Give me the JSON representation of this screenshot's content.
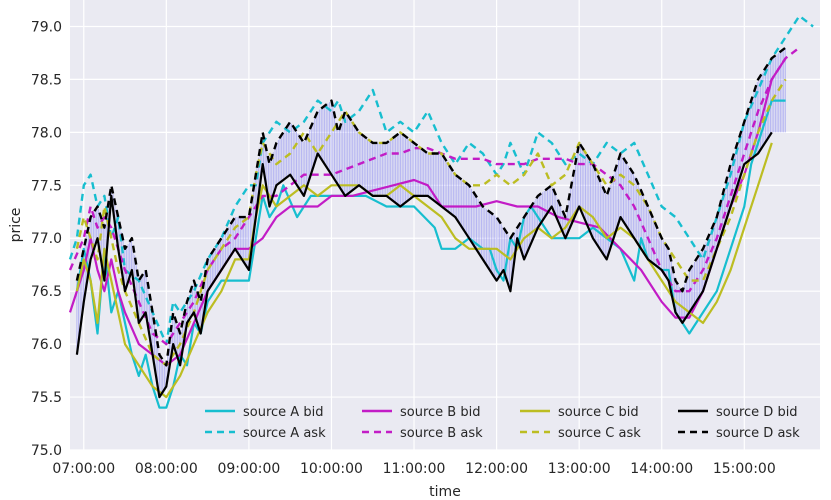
{
  "chart_data": {
    "type": "line",
    "title": "",
    "xlabel": "time",
    "ylabel": "price",
    "xlim": [
      "06:50:00",
      "15:55:00"
    ],
    "ylim": [
      75.0,
      79.25
    ],
    "grid": true,
    "background": "#EAEAF2",
    "x_ticks": [
      "07:00:00",
      "08:00:00",
      "09:00:00",
      "10:00:00",
      "11:00:00",
      "12:00:00",
      "13:00:00",
      "14:00:00",
      "15:00:00"
    ],
    "y_ticks": [
      "75.0",
      "75.5",
      "76.0",
      "76.5",
      "77.0",
      "77.5",
      "78.0",
      "78.5",
      "79.0"
    ],
    "legend": {
      "placement": "lower-center",
      "columns": 4
    },
    "colors": {
      "A": "#17BECF",
      "B": "#C21CC6",
      "C": "#BCBD22",
      "D": "#000000",
      "band": "#8B8BF0"
    },
    "series": [
      {
        "name": "source A bid",
        "source": "A",
        "kind": "bid",
        "style": "solid",
        "x": [
          "06:55",
          "07:00",
          "07:05",
          "07:10",
          "07:15",
          "07:20",
          "07:25",
          "07:30",
          "07:35",
          "07:40",
          "07:45",
          "07:50",
          "07:55",
          "08:00",
          "08:05",
          "08:10",
          "08:15",
          "08:20",
          "08:25",
          "08:30",
          "08:40",
          "08:50",
          "09:00",
          "09:05",
          "09:10",
          "09:15",
          "09:20",
          "09:25",
          "09:35",
          "09:45",
          "10:00",
          "10:15",
          "10:25",
          "10:40",
          "11:00",
          "11:15",
          "11:20",
          "11:30",
          "11:40",
          "11:50",
          "11:55",
          "12:00",
          "12:05",
          "12:10",
          "12:15",
          "12:20",
          "12:25",
          "12:40",
          "12:50",
          "13:00",
          "13:10",
          "13:20",
          "13:30",
          "13:40",
          "13:45",
          "13:50",
          "14:00",
          "14:05",
          "14:10",
          "14:15",
          "14:20",
          "14:30",
          "14:40",
          "14:50",
          "15:00",
          "15:05",
          "15:10",
          "15:20",
          "15:30"
        ],
        "values": [
          76.5,
          76.9,
          76.6,
          76.1,
          76.9,
          76.3,
          76.5,
          76.2,
          75.9,
          75.7,
          75.9,
          75.6,
          75.4,
          75.4,
          75.6,
          75.9,
          75.8,
          76.2,
          76.1,
          76.4,
          76.6,
          76.6,
          76.6,
          77.0,
          77.4,
          77.2,
          77.3,
          77.5,
          77.2,
          77.4,
          77.4,
          77.4,
          77.4,
          77.3,
          77.3,
          77.1,
          76.9,
          76.9,
          77.0,
          76.9,
          76.9,
          76.7,
          76.6,
          77.0,
          76.9,
          77.2,
          77.3,
          77.0,
          77.0,
          77.0,
          77.1,
          77.0,
          76.9,
          76.6,
          77.0,
          76.8,
          76.7,
          76.7,
          76.3,
          76.2,
          76.1,
          76.3,
          76.5,
          76.9,
          77.3,
          77.7,
          77.9,
          78.3,
          78.3
        ]
      },
      {
        "name": "source A ask",
        "source": "A",
        "kind": "ask",
        "style": "dashed",
        "x": [
          "06:50",
          "06:55",
          "07:00",
          "07:05",
          "07:10",
          "07:15",
          "07:20",
          "07:25",
          "07:30",
          "07:40",
          "07:50",
          "08:00",
          "08:05",
          "08:10",
          "08:20",
          "08:30",
          "08:40",
          "08:50",
          "09:00",
          "09:05",
          "09:10",
          "09:20",
          "09:30",
          "09:40",
          "09:50",
          "10:00",
          "10:05",
          "10:10",
          "10:20",
          "10:30",
          "10:40",
          "10:50",
          "11:00",
          "11:10",
          "11:20",
          "11:30",
          "11:40",
          "11:50",
          "12:00",
          "12:05",
          "12:10",
          "12:20",
          "12:30",
          "12:40",
          "12:50",
          "13:00",
          "13:10",
          "13:20",
          "13:30",
          "13:40",
          "13:50",
          "14:00",
          "14:10",
          "14:20",
          "14:30",
          "14:40",
          "14:50",
          "15:00",
          "15:10",
          "15:20",
          "15:30",
          "15:40",
          "15:50"
        ],
        "values": [
          76.8,
          77.0,
          77.5,
          77.6,
          77.3,
          77.4,
          77.0,
          77.2,
          76.7,
          76.6,
          76.3,
          76.0,
          76.4,
          76.3,
          76.5,
          76.8,
          77.0,
          77.3,
          77.5,
          77.5,
          77.9,
          78.1,
          78.0,
          78.1,
          78.3,
          78.2,
          78.3,
          78.1,
          78.2,
          78.4,
          78.0,
          78.1,
          78.0,
          78.2,
          77.9,
          77.7,
          77.9,
          77.8,
          77.6,
          77.7,
          77.9,
          77.6,
          78.0,
          77.9,
          77.7,
          77.8,
          77.7,
          77.9,
          77.8,
          77.9,
          77.6,
          77.3,
          77.2,
          77.0,
          76.8,
          77.2,
          77.6,
          78.1,
          78.4,
          78.7,
          78.9,
          79.1,
          79.0
        ]
      },
      {
        "name": "source B bid",
        "source": "B",
        "kind": "bid",
        "style": "solid",
        "x": [
          "06:50",
          "07:00",
          "07:05",
          "07:10",
          "07:15",
          "07:20",
          "07:25",
          "07:30",
          "07:40",
          "07:50",
          "08:00",
          "08:10",
          "08:20",
          "08:30",
          "08:40",
          "08:50",
          "09:00",
          "09:10",
          "09:20",
          "09:30",
          "09:40",
          "09:50",
          "10:00",
          "10:15",
          "10:30",
          "10:45",
          "11:00",
          "11:10",
          "11:20",
          "11:30",
          "11:45",
          "12:00",
          "12:15",
          "12:30",
          "12:45",
          "13:00",
          "13:15",
          "13:30",
          "13:45",
          "14:00",
          "14:10",
          "14:20",
          "14:30",
          "14:40",
          "14:50",
          "15:00",
          "15:10",
          "15:20",
          "15:30"
        ],
        "values": [
          76.3,
          76.7,
          77.0,
          76.7,
          76.5,
          76.8,
          76.5,
          76.3,
          76.0,
          75.9,
          75.8,
          75.9,
          76.2,
          76.5,
          76.7,
          76.9,
          76.9,
          77.0,
          77.2,
          77.3,
          77.3,
          77.3,
          77.4,
          77.4,
          77.45,
          77.5,
          77.55,
          77.5,
          77.3,
          77.3,
          77.3,
          77.35,
          77.3,
          77.3,
          77.2,
          77.15,
          77.1,
          76.9,
          76.7,
          76.4,
          76.25,
          76.25,
          76.5,
          76.9,
          77.3,
          77.6,
          78.0,
          78.5,
          78.7
        ]
      },
      {
        "name": "source B ask",
        "source": "B",
        "kind": "ask",
        "style": "dashed",
        "x": [
          "06:50",
          "07:00",
          "07:05",
          "07:10",
          "07:15",
          "07:20",
          "07:30",
          "07:40",
          "07:50",
          "08:00",
          "08:10",
          "08:20",
          "08:30",
          "08:40",
          "08:50",
          "09:00",
          "09:10",
          "09:20",
          "09:30",
          "09:40",
          "09:50",
          "10:00",
          "10:10",
          "10:20",
          "10:30",
          "10:40",
          "10:50",
          "11:00",
          "11:10",
          "11:20",
          "11:30",
          "11:40",
          "11:50",
          "12:00",
          "12:10",
          "12:20",
          "12:30",
          "12:40",
          "12:50",
          "13:00",
          "13:10",
          "13:20",
          "13:30",
          "13:40",
          "13:50",
          "14:00",
          "14:10",
          "14:20",
          "14:30",
          "14:40",
          "14:50",
          "15:00",
          "15:10",
          "15:20",
          "15:30",
          "15:40"
        ],
        "values": [
          76.7,
          77.0,
          77.3,
          77.1,
          77.2,
          77.1,
          76.7,
          76.4,
          76.1,
          76.0,
          76.2,
          76.4,
          76.7,
          76.9,
          77.0,
          77.2,
          77.4,
          77.4,
          77.5,
          77.6,
          77.6,
          77.6,
          77.65,
          77.7,
          77.75,
          77.8,
          77.8,
          77.85,
          77.85,
          77.8,
          77.75,
          77.75,
          77.75,
          77.7,
          77.7,
          77.7,
          77.75,
          77.75,
          77.75,
          77.7,
          77.7,
          77.6,
          77.5,
          77.3,
          77.0,
          76.7,
          76.5,
          76.5,
          76.7,
          77.0,
          77.4,
          77.8,
          78.2,
          78.5,
          78.7,
          78.8
        ]
      },
      {
        "name": "source C bid",
        "source": "C",
        "kind": "bid",
        "style": "solid",
        "x": [
          "06:55",
          "07:00",
          "07:05",
          "07:10",
          "07:15",
          "07:20",
          "07:25",
          "07:30",
          "07:40",
          "07:50",
          "08:00",
          "08:10",
          "08:20",
          "08:30",
          "08:40",
          "08:50",
          "09:00",
          "09:05",
          "09:10",
          "09:20",
          "09:30",
          "09:40",
          "09:50",
          "10:00",
          "10:10",
          "10:20",
          "10:30",
          "10:40",
          "10:50",
          "11:00",
          "11:10",
          "11:20",
          "11:30",
          "11:40",
          "11:50",
          "12:00",
          "12:10",
          "12:20",
          "12:30",
          "12:40",
          "12:50",
          "13:00",
          "13:10",
          "13:20",
          "13:30",
          "13:40",
          "13:50",
          "14:00",
          "14:10",
          "14:20",
          "14:30",
          "14:40",
          "14:50",
          "15:00",
          "15:10",
          "15:20"
        ],
        "values": [
          76.5,
          76.8,
          76.6,
          76.2,
          76.9,
          76.6,
          76.3,
          76.0,
          75.8,
          75.6,
          75.5,
          75.7,
          76.0,
          76.3,
          76.5,
          76.8,
          76.8,
          77.2,
          77.5,
          77.3,
          77.4,
          77.5,
          77.4,
          77.5,
          77.5,
          77.5,
          77.4,
          77.4,
          77.5,
          77.4,
          77.3,
          77.2,
          77.0,
          76.9,
          76.9,
          76.9,
          76.8,
          77.0,
          77.1,
          77.0,
          77.1,
          77.3,
          77.2,
          77.0,
          77.1,
          77.0,
          76.8,
          76.6,
          76.4,
          76.3,
          76.2,
          76.4,
          76.7,
          77.1,
          77.5,
          77.9
        ]
      },
      {
        "name": "source C ask",
        "source": "C",
        "kind": "ask",
        "style": "dashed",
        "x": [
          "06:55",
          "07:00",
          "07:05",
          "07:10",
          "07:15",
          "07:20",
          "07:25",
          "07:30",
          "07:40",
          "07:50",
          "08:00",
          "08:10",
          "08:20",
          "08:30",
          "08:40",
          "08:50",
          "09:00",
          "09:05",
          "09:10",
          "09:20",
          "09:30",
          "09:40",
          "09:50",
          "10:00",
          "10:10",
          "10:20",
          "10:30",
          "10:40",
          "10:50",
          "11:00",
          "11:10",
          "11:20",
          "11:30",
          "11:40",
          "11:50",
          "12:00",
          "12:10",
          "12:20",
          "12:30",
          "12:40",
          "12:50",
          "13:00",
          "13:10",
          "13:20",
          "13:30",
          "13:40",
          "13:50",
          "14:00",
          "14:10",
          "14:20",
          "14:30",
          "14:40",
          "14:50",
          "15:00",
          "15:10",
          "15:20",
          "15:30"
        ],
        "values": [
          76.9,
          77.2,
          77.0,
          76.8,
          77.3,
          77.0,
          76.7,
          76.5,
          76.2,
          75.9,
          75.8,
          76.0,
          76.3,
          76.7,
          76.9,
          77.1,
          77.2,
          77.6,
          77.9,
          77.7,
          77.8,
          78.0,
          77.8,
          78.0,
          78.2,
          78.0,
          77.9,
          77.9,
          78.0,
          77.9,
          77.8,
          77.8,
          77.6,
          77.5,
          77.5,
          77.6,
          77.5,
          77.6,
          77.8,
          77.5,
          77.6,
          77.9,
          77.7,
          77.5,
          77.6,
          77.5,
          77.3,
          77.0,
          76.8,
          76.6,
          76.6,
          76.9,
          77.2,
          77.6,
          78.0,
          78.3,
          78.5
        ]
      },
      {
        "name": "source D bid",
        "source": "D",
        "kind": "bid",
        "style": "solid",
        "x": [
          "06:55",
          "07:00",
          "07:05",
          "07:10",
          "07:15",
          "07:20",
          "07:25",
          "07:30",
          "07:35",
          "07:40",
          "07:45",
          "07:50",
          "07:55",
          "08:00",
          "08:05",
          "08:10",
          "08:15",
          "08:20",
          "08:25",
          "08:30",
          "08:40",
          "08:50",
          "09:00",
          "09:05",
          "09:10",
          "09:15",
          "09:20",
          "09:30",
          "09:40",
          "09:50",
          "10:00",
          "10:10",
          "10:20",
          "10:30",
          "10:40",
          "10:50",
          "11:00",
          "11:10",
          "11:20",
          "11:30",
          "11:40",
          "11:50",
          "12:00",
          "12:05",
          "12:10",
          "12:15",
          "12:20",
          "12:30",
          "12:40",
          "12:50",
          "13:00",
          "13:10",
          "13:20",
          "13:30",
          "13:40",
          "13:50",
          "14:00",
          "14:05",
          "14:10",
          "14:15",
          "14:20",
          "14:30",
          "14:40",
          "14:50",
          "15:00",
          "15:10",
          "15:20"
        ],
        "values": [
          75.9,
          76.4,
          76.8,
          77.0,
          76.6,
          77.4,
          76.9,
          76.5,
          76.7,
          76.2,
          76.3,
          75.9,
          75.5,
          75.6,
          76.0,
          75.8,
          76.2,
          76.3,
          76.1,
          76.5,
          76.7,
          76.9,
          76.7,
          77.2,
          77.7,
          77.3,
          77.5,
          77.6,
          77.4,
          77.8,
          77.6,
          77.4,
          77.5,
          77.4,
          77.4,
          77.3,
          77.4,
          77.4,
          77.3,
          77.2,
          77.0,
          76.8,
          76.6,
          76.7,
          76.5,
          77.0,
          76.8,
          77.1,
          77.3,
          77.0,
          77.3,
          77.0,
          76.8,
          77.2,
          77.0,
          76.8,
          76.7,
          76.6,
          76.3,
          76.2,
          76.3,
          76.5,
          76.9,
          77.3,
          77.7,
          77.8,
          78.0
        ]
      },
      {
        "name": "source D ask",
        "source": "D",
        "kind": "ask",
        "style": "dashed",
        "x": [
          "06:55",
          "07:00",
          "07:05",
          "07:10",
          "07:15",
          "07:20",
          "07:25",
          "07:30",
          "07:35",
          "07:40",
          "07:45",
          "07:50",
          "07:55",
          "08:00",
          "08:05",
          "08:10",
          "08:15",
          "08:20",
          "08:25",
          "08:30",
          "08:40",
          "08:50",
          "09:00",
          "09:05",
          "09:10",
          "09:15",
          "09:20",
          "09:30",
          "09:40",
          "09:50",
          "10:00",
          "10:05",
          "10:10",
          "10:20",
          "10:30",
          "10:40",
          "10:50",
          "11:00",
          "11:10",
          "11:20",
          "11:30",
          "11:40",
          "11:50",
          "12:00",
          "12:10",
          "12:20",
          "12:30",
          "12:40",
          "12:50",
          "13:00",
          "13:10",
          "13:20",
          "13:30",
          "13:40",
          "13:50",
          "14:00",
          "14:05",
          "14:10",
          "14:15",
          "14:20",
          "14:30",
          "14:40",
          "14:50",
          "15:00",
          "15:10",
          "15:20",
          "15:30"
        ],
        "values": [
          76.6,
          76.9,
          77.2,
          77.3,
          77.1,
          77.5,
          77.2,
          76.9,
          77.0,
          76.6,
          76.7,
          76.3,
          75.9,
          75.8,
          76.3,
          76.1,
          76.4,
          76.6,
          76.4,
          76.8,
          77.0,
          77.2,
          77.2,
          77.6,
          78.0,
          77.7,
          77.9,
          78.1,
          77.9,
          78.2,
          78.3,
          78.0,
          78.2,
          78.0,
          77.9,
          77.9,
          78.0,
          77.9,
          77.8,
          77.8,
          77.6,
          77.5,
          77.3,
          77.2,
          77.0,
          77.2,
          77.4,
          77.5,
          77.2,
          77.9,
          77.7,
          77.4,
          77.8,
          77.6,
          77.3,
          77.0,
          76.9,
          76.6,
          76.5,
          76.7,
          76.9,
          77.2,
          77.7,
          78.1,
          78.5,
          78.7,
          78.8
        ]
      }
    ]
  }
}
